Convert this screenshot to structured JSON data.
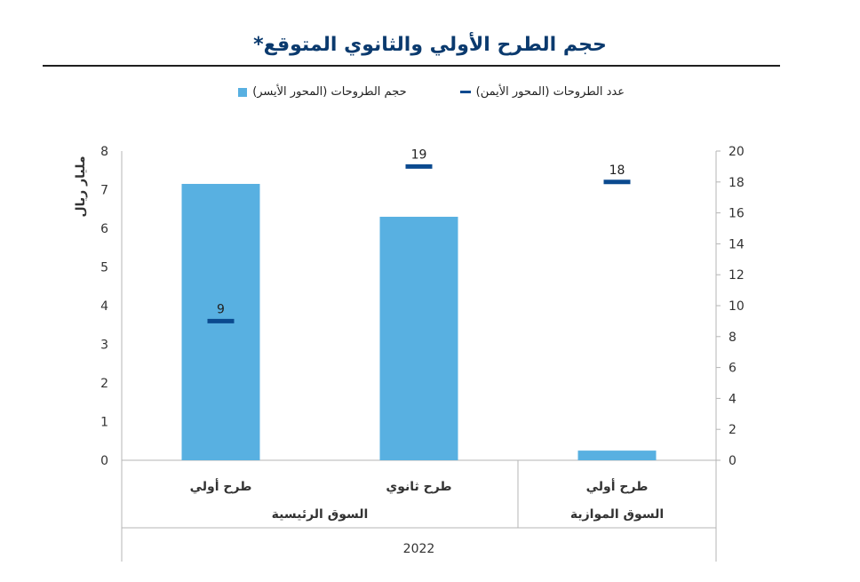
{
  "title": "حجم الطرح الأولي والثانوي المتوقع*",
  "legend": {
    "line_label": "عدد الطروحات (المحور الأيمن)",
    "bar_label": "حجم الطروحات (المحور الأيسر)"
  },
  "colors": {
    "bar": "#58b0e1",
    "marker": "#0b4a8f",
    "title": "#0b3a6e"
  },
  "chart_data": {
    "type": "bar",
    "title": "حجم الطرح الأولي والثانوي المتوقع*",
    "categories": [
      "طرح أولي",
      "طرح ثانوي",
      "طرح أولي"
    ],
    "groups": [
      {
        "label": "السوق الرئيسية",
        "categories": [
          0,
          1
        ]
      },
      {
        "label": "السوق الموازية",
        "categories": [
          2
        ]
      }
    ],
    "year_label": "2022",
    "ylabel": "مليار ريال",
    "ylim": [
      0,
      8
    ],
    "y2lim": [
      0,
      20
    ],
    "yticks": [
      0,
      1,
      2,
      3,
      4,
      5,
      6,
      7,
      8
    ],
    "y2ticks": [
      0,
      2,
      4,
      6,
      8,
      10,
      12,
      14,
      16,
      18,
      20
    ],
    "series": [
      {
        "name": "حجم الطروحات (المحور الأيسر)",
        "kind": "bar",
        "axis": "left",
        "values": [
          7.15,
          6.3,
          0.25
        ]
      },
      {
        "name": "عدد الطروحات (المحور الأيمن)",
        "kind": "marker",
        "axis": "right",
        "values": [
          9,
          19,
          18
        ]
      }
    ],
    "grid": false,
    "legend_position": "top"
  }
}
